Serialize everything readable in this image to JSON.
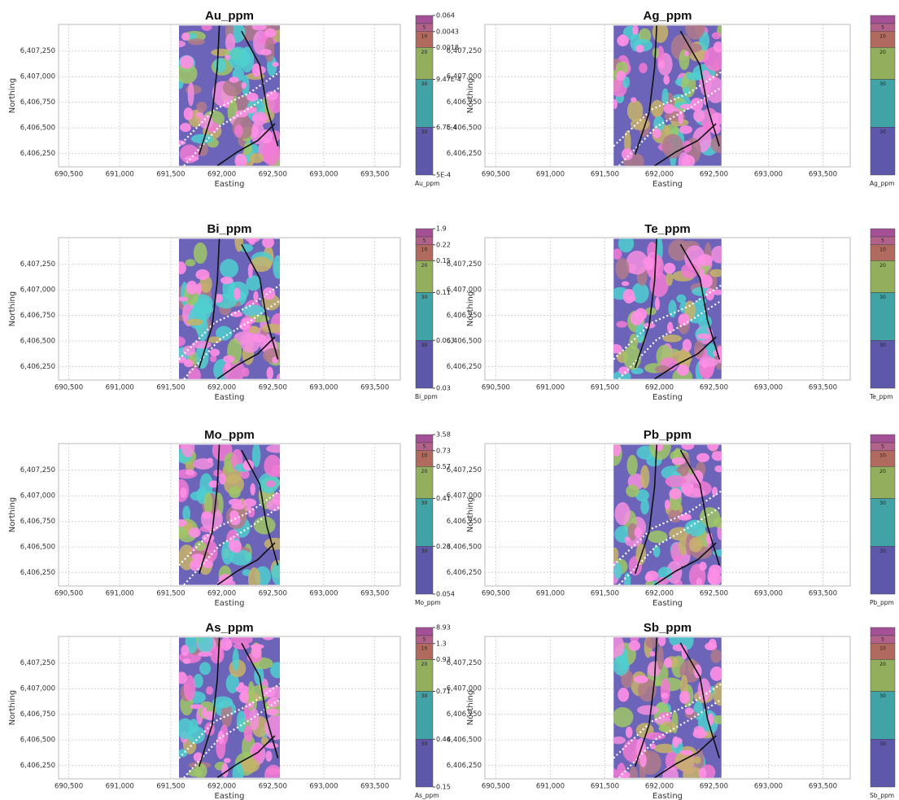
{
  "panels": [
    {
      "title": "Au_ppm",
      "breaks": [
        "0.064",
        "0.0043",
        "0.0018",
        "9.47E-4",
        "6.7E-4",
        "5E-4"
      ]
    },
    {
      "title": "Ag_ppm"
    },
    {
      "title": "Bi_ppm",
      "breaks": [
        "1.9",
        "0.22",
        "0.15",
        "0.11",
        "0.063",
        "0.03"
      ]
    },
    {
      "title": "Te_ppm"
    },
    {
      "title": "Mo_ppm",
      "breaks": [
        "3.58",
        "0.73",
        "0.57",
        "0.41",
        "0.23",
        "0.054"
      ]
    },
    {
      "title": "Pb_ppm"
    },
    {
      "title": "As_ppm",
      "breaks": [
        "8.93",
        "1.3",
        "0.93",
        "0.71",
        "0.44",
        "0.15"
      ]
    },
    {
      "title": "Sb_ppm"
    }
  ],
  "axes": {
    "x_label": "Easting",
    "y_label": "Northing",
    "xlim": [
      690400,
      693750
    ],
    "ylim": [
      6406120,
      6407510
    ],
    "xticks": [
      {
        "value": 690500,
        "label": "690,500"
      },
      {
        "value": 691000,
        "label": "691,000"
      },
      {
        "value": 691500,
        "label": "691,500"
      },
      {
        "value": 692000,
        "label": "692,000"
      },
      {
        "value": 692500,
        "label": "692,500"
      },
      {
        "value": 693000,
        "label": "693,000"
      },
      {
        "value": 693500,
        "label": "693,500"
      }
    ],
    "yticks": [
      {
        "value": 6406250,
        "label": "6,406,250"
      },
      {
        "value": 6406500,
        "label": "6,406,500"
      },
      {
        "value": 6406750,
        "label": "6,406,750"
      },
      {
        "value": 6407000,
        "label": "6,407,000"
      },
      {
        "value": 6407250,
        "label": "6,407,250"
      }
    ]
  },
  "legend_percent": [
    5,
    10,
    20,
    30,
    30
  ]
}
